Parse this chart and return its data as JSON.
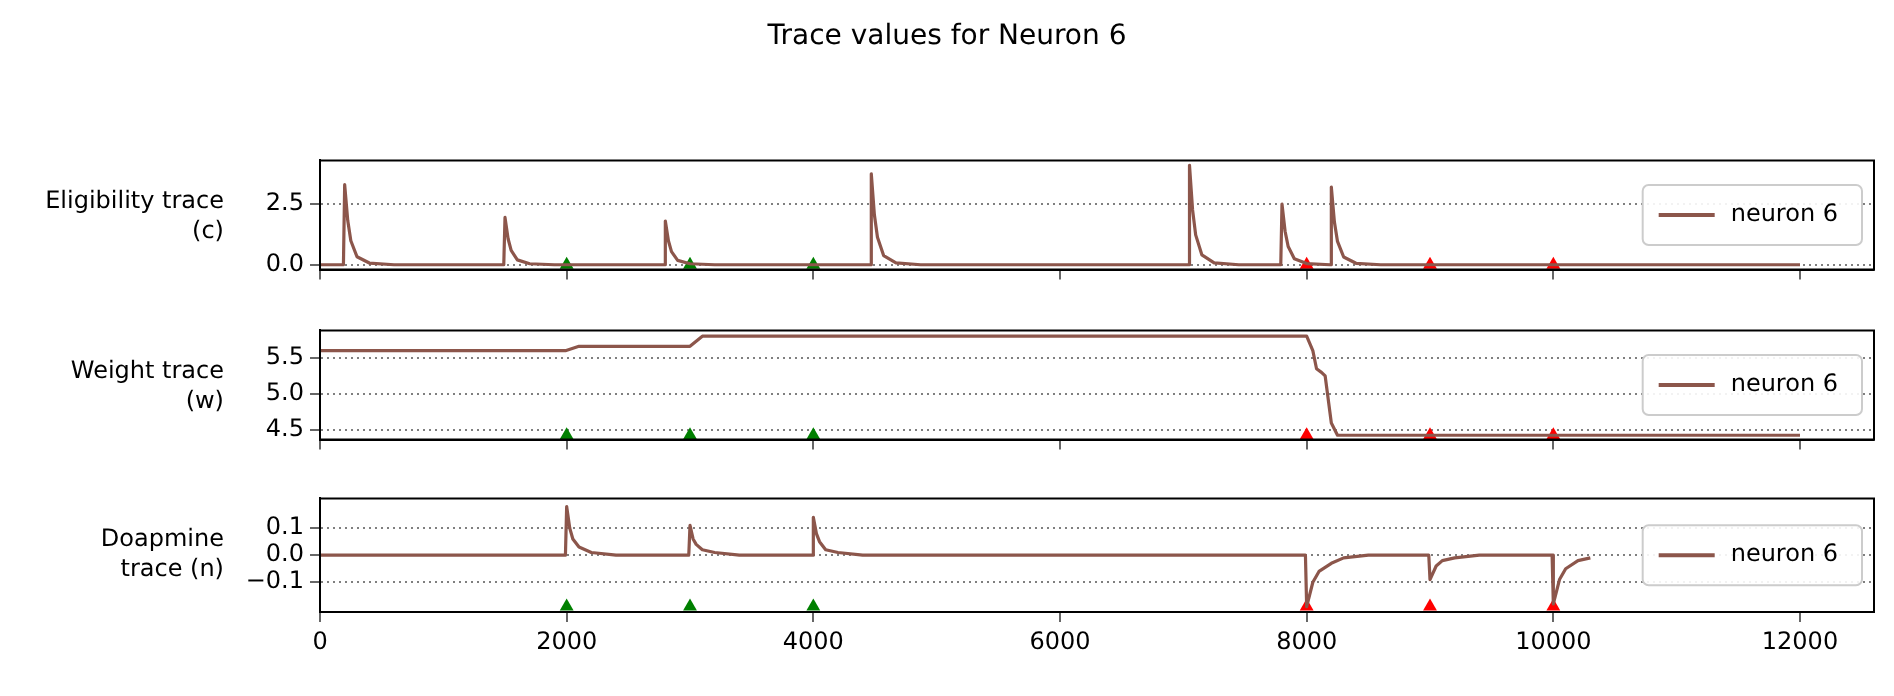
{
  "chart_data": [
    {
      "type": "line",
      "title": "Trace values for Neuron 6",
      "ylabel": "Eligibility trace (c)",
      "xlim": [
        0,
        12600
      ],
      "xticks": [
        0,
        2000,
        4000,
        6000,
        8000,
        10000,
        12000
      ],
      "ylim": [
        -0.2,
        4.3
      ],
      "yticks": [
        {
          "value": 0,
          "label": "0.0"
        },
        {
          "value": 2.5,
          "label": "2.5"
        }
      ],
      "grid": true,
      "legend": "right",
      "tick_labels": "y",
      "series": [
        {
          "name": "neuron 6",
          "color": "#8c564b",
          "x": [
            0,
            190,
            200,
            225,
            250,
            300,
            400,
            600,
            1490,
            1500,
            1525,
            1550,
            1600,
            1700,
            1900,
            2790,
            2800,
            2825,
            2850,
            2900,
            3000,
            3200,
            4460,
            4470,
            4495,
            4520,
            4570,
            4670,
            4870,
            7040,
            7050,
            7075,
            7100,
            7150,
            7250,
            7450,
            7790,
            7800,
            7825,
            7850,
            7900,
            8000,
            8190,
            8200,
            8225,
            8250,
            8300,
            8400,
            8600,
            12000
          ],
          "values": [
            0,
            0,
            3.3,
            1.82,
            0.99,
            0.33,
            0.07,
            0,
            0,
            1.95,
            1.07,
            0.59,
            0.2,
            0.04,
            0,
            0,
            1.8,
            0.99,
            0.54,
            0.18,
            0.04,
            0,
            0,
            3.75,
            2.06,
            1.13,
            0.38,
            0.08,
            0,
            0,
            4.1,
            2.26,
            1.23,
            0.41,
            0.08,
            0,
            0,
            2.5,
            1.38,
            0.75,
            0.25,
            0.05,
            0,
            3.2,
            1.76,
            0.96,
            0.32,
            0.06,
            0,
            0
          ]
        },
        {
          "type": "scatter",
          "marker": "triangle",
          "x": [
            2000,
            3000,
            4000,
            8000,
            9000,
            10000
          ],
          "values": [
            0,
            0,
            0,
            0,
            0,
            0
          ],
          "colors": [
            "#008000",
            "#008000",
            "#008000",
            "#ff0000",
            "#ff0000",
            "#ff0000"
          ]
        }
      ]
    },
    {
      "type": "line",
      "ylabel": "Weight trace (w)",
      "xlim": [
        0,
        12600
      ],
      "xticks": [
        0,
        2000,
        4000,
        6000,
        8000,
        10000,
        12000
      ],
      "ylim": [
        4.37,
        5.88
      ],
      "yticks": [
        {
          "value": 4.5,
          "label": "4.5"
        },
        {
          "value": 5,
          "label": "5.0"
        },
        {
          "value": 5.5,
          "label": "5.5"
        }
      ],
      "grid": true,
      "legend": "right",
      "tick_labels": "y",
      "series": [
        {
          "name": "neuron 6",
          "color": "#8c564b",
          "x": [
            0,
            1990,
            2100,
            3000,
            3100,
            8000,
            8050,
            8080,
            8120,
            8150,
            8200,
            8250,
            12000
          ],
          "values": [
            5.6,
            5.6,
            5.66,
            5.66,
            5.8,
            5.8,
            5.6,
            5.35,
            5.3,
            5.25,
            4.6,
            4.43,
            4.43
          ]
        },
        {
          "type": "scatter",
          "marker": "triangle",
          "x": [
            2000,
            3000,
            4000,
            8000,
            9000,
            10000
          ],
          "values": [
            4.43,
            4.43,
            4.43,
            4.43,
            4.43,
            4.43
          ],
          "colors": [
            "#008000",
            "#008000",
            "#008000",
            "#ff0000",
            "#ff0000",
            "#ff0000"
          ]
        }
      ]
    },
    {
      "type": "line",
      "ylabel": "Doapmine trace (n)",
      "xlim": [
        0,
        12600
      ],
      "xticks": [
        0,
        2000,
        4000,
        6000,
        8000,
        10000,
        12000
      ],
      "ylim": [
        -0.21,
        0.21
      ],
      "yticks": [
        {
          "value": -0.1,
          "label": "−0.1"
        },
        {
          "value": 0,
          "label": "0.0"
        },
        {
          "value": 0.1,
          "label": "0.1"
        }
      ],
      "grid": true,
      "legend": "right",
      "series": [
        {
          "name": "neuron 6",
          "color": "#8c564b",
          "x": [
            0,
            1990,
            2000,
            2025,
            2050,
            2100,
            2200,
            2400,
            2990,
            3000,
            3025,
            3050,
            3100,
            3200,
            3400,
            3990,
            4000,
            4025,
            4050,
            4100,
            4200,
            4400,
            7990,
            8000,
            8050,
            8100,
            8200,
            8300,
            8500,
            8990,
            9000,
            9050,
            9100,
            9200,
            9400,
            9990,
            10000,
            10050,
            10100,
            10200,
            10300
          ],
          "values": [
            0,
            0,
            0.18,
            0.1,
            0.06,
            0.03,
            0.01,
            0,
            0,
            0.11,
            0.06,
            0.04,
            0.02,
            0.01,
            0,
            0,
            0.14,
            0.08,
            0.05,
            0.02,
            0.01,
            0,
            0,
            -0.19,
            -0.1,
            -0.06,
            -0.03,
            -0.01,
            0,
            0,
            -0.09,
            -0.04,
            -0.02,
            -0.01,
            0,
            0,
            -0.18,
            -0.09,
            -0.05,
            -0.02,
            -0.01
          ]
        },
        {
          "type": "scatter",
          "marker": "triangle",
          "x": [
            2000,
            3000,
            4000,
            8000,
            9000,
            10000
          ],
          "values": [
            -0.19,
            -0.19,
            -0.19,
            -0.19,
            -0.19,
            -0.19
          ],
          "colors": [
            "#008000",
            "#008000",
            "#008000",
            "#ff0000",
            "#ff0000",
            "#ff0000"
          ]
        }
      ]
    }
  ]
}
